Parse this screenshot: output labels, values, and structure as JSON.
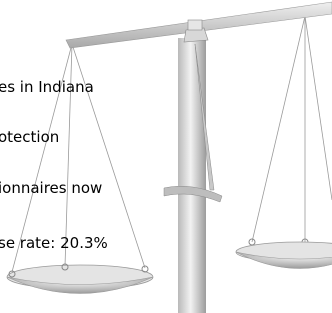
{
  "slide": {
    "lines": [
      "es in Indiana",
      "otection",
      "ionnaires now",
      "se rate:  20.3%"
    ]
  }
}
